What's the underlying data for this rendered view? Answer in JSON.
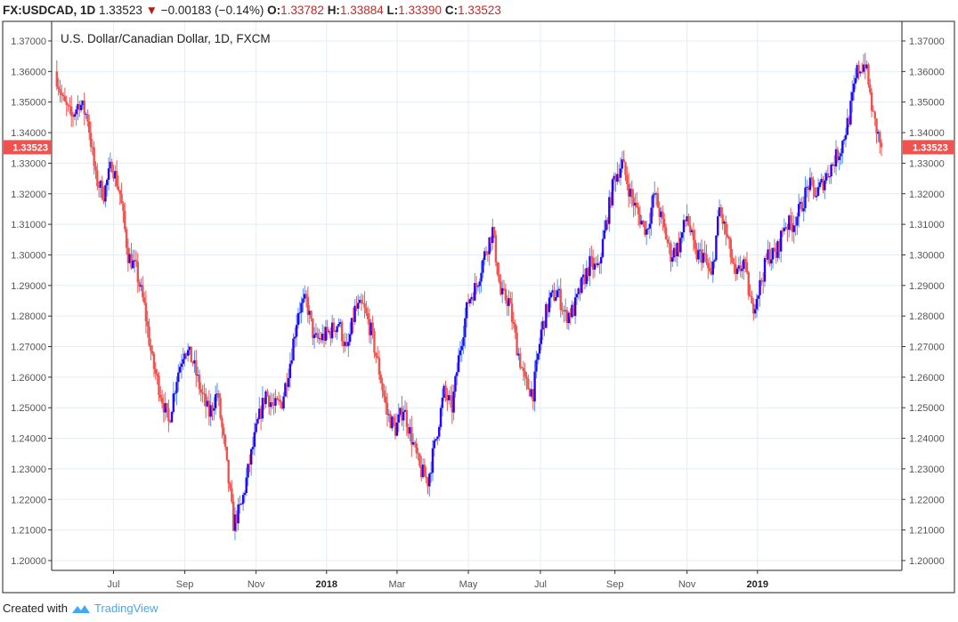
{
  "header": {
    "symbol": "FX:USDCAD, 1D",
    "last": "1.33523",
    "change": "−0.00183 (−0.14%)",
    "o_label": "O:",
    "o": "1.33782",
    "h_label": "H:",
    "h": "1.33884",
    "l_label": "L:",
    "l": "1.33390",
    "c_label": "C:",
    "c": "1.33523"
  },
  "footer": {
    "created_with": "Created with",
    "brand": "TradingView"
  },
  "colors": {
    "up_body": "#2a00ff",
    "up_wick": "#5b8fe8",
    "down": "#ef5350",
    "grid": "#e4edf5",
    "price_label": "#ef5350"
  },
  "chart_data": {
    "type": "candlestick",
    "title": "U.S. Dollar/Canadian Dollar, 1D, FXCM",
    "ylim": [
      1.195,
      1.374
    ],
    "yticks": [
      "1.37000",
      "1.36000",
      "1.35000",
      "1.34000",
      "1.33000",
      "1.32000",
      "1.31000",
      "1.30000",
      "1.29000",
      "1.28000",
      "1.27000",
      "1.26000",
      "1.25000",
      "1.24000",
      "1.23000",
      "1.22000",
      "1.21000",
      "1.20000"
    ],
    "xticks": [
      {
        "label": "Jul",
        "bold": false,
        "week": 7.2
      },
      {
        "label": "Sep",
        "bold": false,
        "week": 16
      },
      {
        "label": "Nov",
        "bold": false,
        "week": 24.8
      },
      {
        "label": "2018",
        "bold": true,
        "week": 33.5
      },
      {
        "label": "Mar",
        "bold": false,
        "week": 42.2
      },
      {
        "label": "May",
        "bold": false,
        "week": 51
      },
      {
        "label": "Jul",
        "bold": false,
        "week": 59.9
      },
      {
        "label": "Sep",
        "bold": false,
        "week": 69.1
      },
      {
        "label": "Nov",
        "bold": false,
        "week": 78
      },
      {
        "label": "2019",
        "bold": true,
        "week": 86.7
      }
    ],
    "last_price": "1.33523",
    "weekly_closes": [
      1.36,
      1.35,
      1.345,
      1.35,
      1.345,
      1.325,
      1.32,
      1.33,
      1.32,
      1.3,
      1.295,
      1.283,
      1.265,
      1.255,
      1.245,
      1.26,
      1.27,
      1.265,
      1.255,
      1.248,
      1.255,
      1.235,
      1.212,
      1.218,
      1.232,
      1.245,
      1.255,
      1.25,
      1.252,
      1.265,
      1.282,
      1.285,
      1.272,
      1.273,
      1.275,
      1.278,
      1.268,
      1.282,
      1.283,
      1.275,
      1.262,
      1.248,
      1.243,
      1.25,
      1.24,
      1.23,
      1.226,
      1.24,
      1.255,
      1.25,
      1.27,
      1.285,
      1.29,
      1.3,
      1.308,
      1.287,
      1.285,
      1.27,
      1.258,
      1.255,
      1.275,
      1.285,
      1.288,
      1.28,
      1.282,
      1.29,
      1.297,
      1.295,
      1.31,
      1.325,
      1.33,
      1.32,
      1.313,
      1.308,
      1.32,
      1.31,
      1.3,
      1.303,
      1.313,
      1.3,
      1.3,
      1.292,
      1.315,
      1.305,
      1.292,
      1.298,
      1.282,
      1.29,
      1.3,
      1.3,
      1.31,
      1.31,
      1.315,
      1.323,
      1.32,
      1.325,
      1.33,
      1.335,
      1.345,
      1.36,
      1.363,
      1.345,
      1.335
    ]
  }
}
